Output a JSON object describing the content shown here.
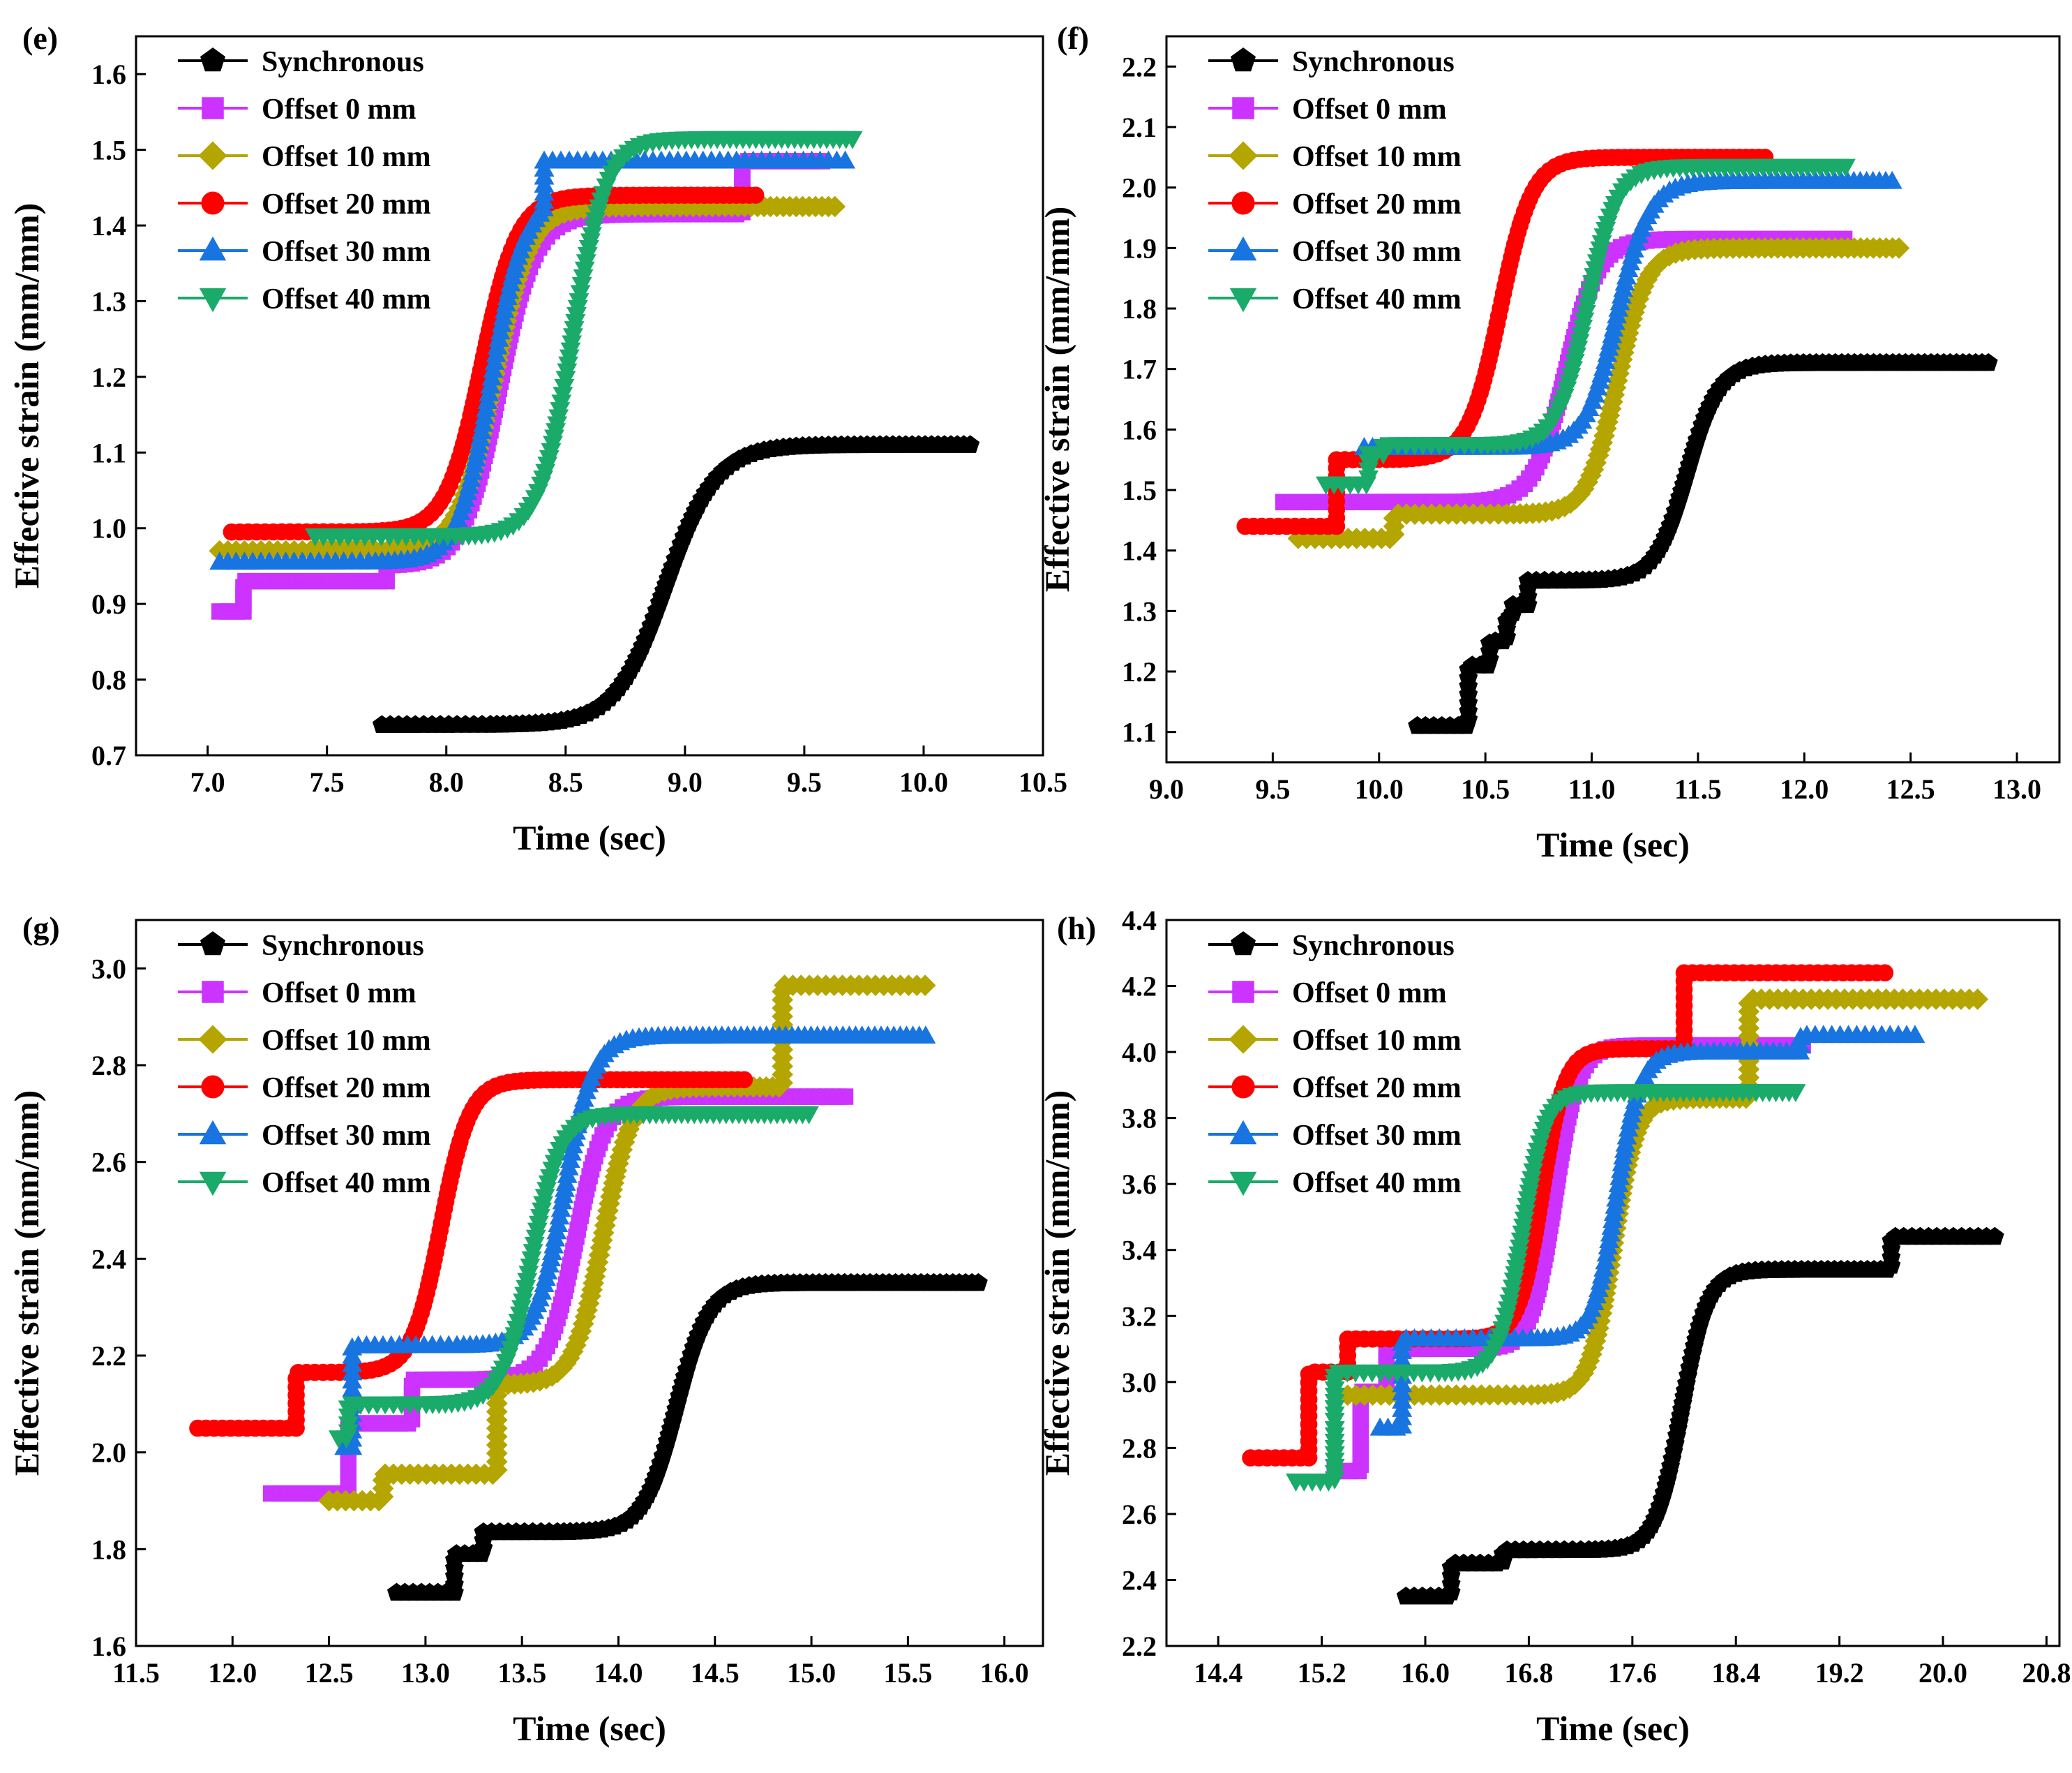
{
  "chart_data": [
    {
      "type": "line",
      "panel_label": "(e)",
      "xlabel": "Time (sec)",
      "ylabel": "Effective strain (mm/mm)",
      "xlim": [
        6.7,
        10.5
      ],
      "ylim": [
        0.7,
        1.65
      ],
      "xticks": [
        7.0,
        7.5,
        8.0,
        8.5,
        9.0,
        9.5,
        10.0,
        10.5
      ],
      "yticks": [
        0.7,
        0.8,
        0.9,
        1.0,
        1.1,
        1.2,
        1.3,
        1.4,
        1.5,
        1.6
      ],
      "tick_decimals": 1,
      "legend_position": "top-left",
      "series": [
        {
          "name": "Synchronous",
          "marker": "pentagon",
          "color": "#000000",
          "steps": [
            [
              7.73,
              0.74
            ]
          ],
          "x0": 8.92,
          "width": 0.105,
          "high": 1.11,
          "end": 10.2,
          "spike": null
        },
        {
          "name": "Offset 0 mm",
          "marker": "square",
          "color": "#cc33ff",
          "steps": [
            [
              7.05,
              0.89
            ],
            [
              7.15,
              0.93
            ],
            [
              7.75,
              0.95
            ]
          ],
          "x0": 8.22,
          "width": 0.075,
          "high": 1.415,
          "end": 9.24,
          "spike": [
            9.24,
            1.485,
            9.6
          ]
        },
        {
          "name": "Offset 10 mm",
          "marker": "diamond",
          "color": "#b5a500",
          "steps": [
            [
              7.05,
              0.97
            ]
          ],
          "x0": 8.2,
          "width": 0.075,
          "high": 1.425,
          "end": 9.65,
          "spike": null
        },
        {
          "name": "Offset 20 mm",
          "marker": "circle",
          "color": "#ff0000",
          "steps": [
            [
              7.1,
              0.995
            ]
          ],
          "x0": 8.15,
          "width": 0.075,
          "high": 1.44,
          "end": 9.3,
          "spike": null
        },
        {
          "name": "Offset 30 mm",
          "marker": "triangle-up",
          "color": "#1874e0",
          "steps": [
            [
              7.05,
              0.955
            ]
          ],
          "x0": 8.19,
          "width": 0.07,
          "high": 1.44,
          "end": 8.41,
          "spike": [
            8.41,
            1.485,
            9.68
          ]
        },
        {
          "name": "Offset 40 mm",
          "marker": "triangle-down",
          "color": "#1aaa6a",
          "steps": [
            [
              7.45,
              0.99
            ]
          ],
          "x0": 8.53,
          "width": 0.07,
          "high": 1.515,
          "end": 9.72,
          "spike": null
        }
      ]
    },
    {
      "type": "line",
      "panel_label": "(f)",
      "xlabel": "Time (sec)",
      "ylabel": "Effective strain (mm/mm)",
      "xlim": [
        9.0,
        13.2
      ],
      "ylim": [
        1.05,
        2.25
      ],
      "xticks": [
        9.0,
        9.5,
        10.0,
        10.5,
        11.0,
        11.5,
        12.0,
        12.5,
        13.0
      ],
      "yticks": [
        1.1,
        1.2,
        1.3,
        1.4,
        1.5,
        1.6,
        1.7,
        1.8,
        1.9,
        2.0,
        2.1,
        2.2
      ],
      "tick_decimals": 1,
      "legend_position": "top-left",
      "series": [
        {
          "name": "Synchronous",
          "marker": "pentagon",
          "color": "#000000",
          "steps": [
            [
              10.18,
              1.11
            ],
            [
              10.42,
              1.21
            ],
            [
              10.52,
              1.25
            ],
            [
              10.6,
              1.29
            ],
            [
              10.63,
              1.31
            ],
            [
              10.7,
              1.35
            ]
          ],
          "x0": 11.45,
          "width": 0.075,
          "high": 1.71,
          "end": 12.87,
          "spike": null
        },
        {
          "name": "Offset 0 mm",
          "marker": "square",
          "color": "#cc33ff",
          "steps": [
            [
              9.55,
              1.48
            ]
          ],
          "x0": 10.88,
          "width": 0.075,
          "high": 1.915,
          "end": 12.2,
          "spike": null
        },
        {
          "name": "Offset 10 mm",
          "marker": "diamond",
          "color": "#b5a500",
          "steps": [
            [
              9.62,
              1.42
            ],
            [
              10.07,
              1.46
            ]
          ],
          "x0": 11.12,
          "width": 0.07,
          "high": 1.9,
          "end": 12.45,
          "spike": null
        },
        {
          "name": "Offset 20 mm",
          "marker": "circle",
          "color": "#ff0000",
          "steps": [
            [
              9.37,
              1.44
            ],
            [
              9.8,
              1.55
            ]
          ],
          "x0": 10.57,
          "width": 0.075,
          "high": 2.05,
          "end": 11.82,
          "spike": null
        },
        {
          "name": "Offset 30 mm",
          "marker": "triangle-up",
          "color": "#1874e0",
          "steps": [
            [
              9.93,
              1.57
            ]
          ],
          "x0": 11.12,
          "width": 0.075,
          "high": 2.01,
          "end": 12.42,
          "spike": null
        },
        {
          "name": "Offset 40 mm",
          "marker": "triangle-down",
          "color": "#1aaa6a",
          "steps": [
            [
              9.75,
              1.51
            ],
            [
              9.95,
              1.56
            ],
            [
              10.02,
              1.575
            ]
          ],
          "x0": 10.98,
          "width": 0.07,
          "high": 2.035,
          "end": 12.2,
          "spike": null
        }
      ]
    },
    {
      "type": "line",
      "panel_label": "(g)",
      "xlabel": "Time (sec)",
      "ylabel": "Effective strain (mm/mm)",
      "xlim": [
        11.5,
        16.2
      ],
      "ylim": [
        1.6,
        3.1
      ],
      "xticks": [
        11.5,
        12.0,
        12.5,
        13.0,
        13.5,
        14.0,
        14.5,
        15.0,
        15.5,
        16.0
      ],
      "yticks": [
        1.6,
        1.8,
        2.0,
        2.2,
        2.4,
        2.6,
        2.8,
        3.0
      ],
      "tick_decimals": 1,
      "legend_position": "top-left",
      "series": [
        {
          "name": "Synchronous",
          "marker": "pentagon",
          "color": "#000000",
          "steps": [
            [
              12.85,
              1.71
            ],
            [
              13.15,
              1.79
            ],
            [
              13.3,
              1.835
            ]
          ],
          "x0": 14.3,
          "width": 0.085,
          "high": 2.35,
          "end": 15.88,
          "spike": null
        },
        {
          "name": "Offset 0 mm",
          "marker": "square",
          "color": "#cc33ff",
          "steps": [
            [
              12.2,
              1.915
            ],
            [
              12.6,
              2.06
            ],
            [
              12.93,
              2.15
            ]
          ],
          "x0": 13.78,
          "width": 0.075,
          "high": 2.735,
          "end": 15.2,
          "spike": null
        },
        {
          "name": "Offset 10 mm",
          "marker": "diamond",
          "color": "#b5a500",
          "steps": [
            [
              12.5,
              1.9
            ],
            [
              12.78,
              1.955
            ],
            [
              13.37,
              2.14
            ]
          ],
          "x0": 13.92,
          "width": 0.075,
          "high": 2.755,
          "end": 14.85,
          "spike": [
            14.85,
            2.965,
            15.6
          ]
        },
        {
          "name": "Offset 20 mm",
          "marker": "circle",
          "color": "#ff0000",
          "steps": [
            [
              11.82,
              2.05
            ],
            [
              12.33,
              2.165
            ]
          ],
          "x0": 13.08,
          "width": 0.075,
          "high": 2.77,
          "end": 14.68,
          "spike": null
        },
        {
          "name": "Offset 30 mm",
          "marker": "triangle-up",
          "color": "#1874e0",
          "steps": [
            [
              12.58,
              2.01
            ],
            [
              12.62,
              2.22
            ]
          ],
          "x0": 13.72,
          "width": 0.075,
          "high": 2.86,
          "end": 15.62,
          "spike": null
        },
        {
          "name": "Offset 40 mm",
          "marker": "triangle-down",
          "color": "#1aaa6a",
          "steps": [
            [
              12.55,
              2.03
            ],
            [
              12.6,
              2.1
            ]
          ],
          "x0": 13.55,
          "width": 0.075,
          "high": 2.7,
          "end": 15.0,
          "spike": null
        }
      ]
    },
    {
      "type": "line",
      "panel_label": "(h)",
      "xlabel": "Time (sec)",
      "ylabel": "Effective strain (mm/mm)",
      "xlim": [
        14.0,
        20.9
      ],
      "ylim": [
        2.2,
        4.4
      ],
      "xticks": [
        14.4,
        15.2,
        16.0,
        16.8,
        17.6,
        18.4,
        19.2,
        20.0,
        20.8
      ],
      "yticks": [
        2.2,
        2.4,
        2.6,
        2.8,
        3.0,
        3.2,
        3.4,
        3.6,
        3.8,
        4.0,
        4.2,
        4.4
      ],
      "tick_decimals": 1,
      "legend_position": "top-left",
      "series": [
        {
          "name": "Synchronous",
          "marker": "pentagon",
          "color": "#000000",
          "steps": [
            [
              15.85,
              2.35
            ],
            [
              16.2,
              2.45
            ],
            [
              16.6,
              2.49
            ]
          ],
          "x0": 17.98,
          "width": 0.1,
          "high": 3.34,
          "end": 19.6,
          "spike": [
            19.6,
            3.44,
            20.4
          ]
        },
        {
          "name": "Offset 0 mm",
          "marker": "square",
          "color": "#cc33ff",
          "steps": [
            [
              15.3,
              2.73
            ],
            [
              15.5,
              2.97
            ],
            [
              15.7,
              3.1
            ]
          ],
          "x0": 17.0,
          "width": 0.09,
          "high": 4.02,
          "end": 18.95,
          "spike": null
        },
        {
          "name": "Offset 10 mm",
          "marker": "diamond",
          "color": "#b5a500",
          "steps": [
            [
              15.4,
              2.96
            ]
          ],
          "x0": 17.45,
          "width": 0.09,
          "high": 3.86,
          "end": 18.5,
          "spike": [
            18.5,
            4.16,
            20.3
          ]
        },
        {
          "name": "Offset 20 mm",
          "marker": "circle",
          "color": "#ff0000",
          "steps": [
            [
              14.65,
              2.77
            ],
            [
              15.1,
              3.03
            ],
            [
              15.4,
              3.13
            ]
          ],
          "x0": 16.9,
          "width": 0.09,
          "high": 4.01,
          "end": 18.0,
          "spike": [
            18.0,
            4.24,
            19.6
          ]
        },
        {
          "name": "Offset 30 mm",
          "marker": "triangle-up",
          "color": "#1874e0",
          "steps": [
            [
              15.65,
              2.86
            ],
            [
              15.82,
              3.13
            ]
          ],
          "x0": 17.48,
          "width": 0.09,
          "high": 4.0,
          "end": 18.9,
          "spike": [
            18.9,
            4.05,
            19.8
          ]
        },
        {
          "name": "Offset 40 mm",
          "marker": "triangle-down",
          "color": "#1aaa6a",
          "steps": [
            [
              15.0,
              2.7
            ],
            [
              15.3,
              3.03
            ]
          ],
          "x0": 16.75,
          "width": 0.09,
          "high": 3.88,
          "end": 18.9,
          "spike": null
        }
      ]
    }
  ]
}
